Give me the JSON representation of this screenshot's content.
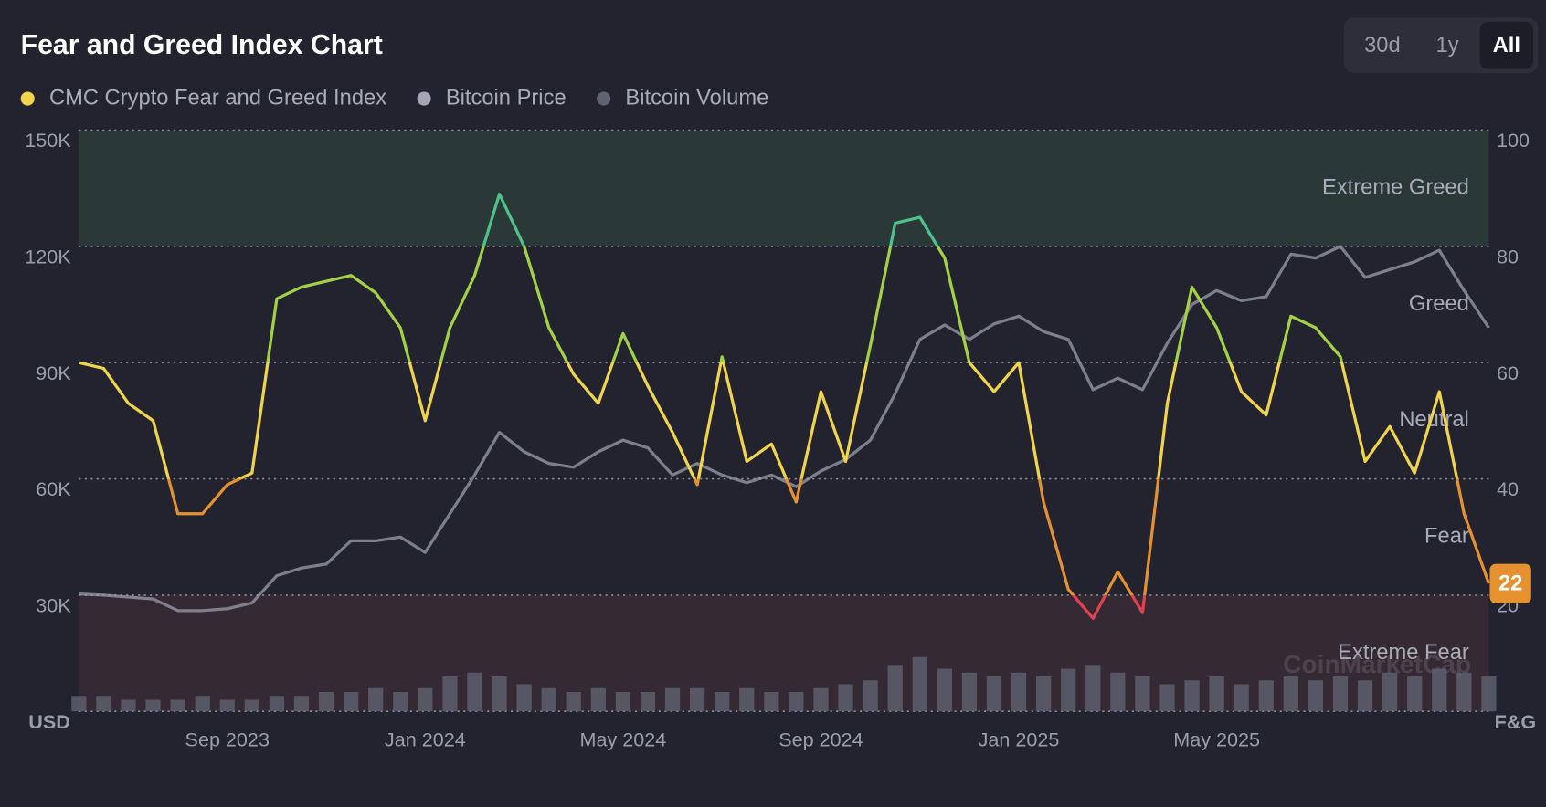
{
  "chart_data": {
    "type": "line",
    "title": "Fear and Greed Index Chart",
    "controls": {
      "ranges": [
        "30d",
        "1y",
        "All"
      ],
      "selected_index": 2
    },
    "y_unit": "USD",
    "y2_unit": "F&G",
    "watermark": "CoinMarketCap",
    "current_value": 22,
    "categories": [
      null,
      null,
      null,
      null,
      null,
      null,
      "Sep 2023",
      null,
      null,
      null,
      null,
      null,
      null,
      null,
      "Jan 2024",
      null,
      null,
      null,
      null,
      null,
      null,
      null,
      "May 2024",
      null,
      null,
      null,
      null,
      null,
      null,
      null,
      "Sep 2024",
      null,
      null,
      null,
      null,
      null,
      null,
      null,
      "Jan 2025",
      null,
      null,
      null,
      null,
      null,
      null,
      null,
      "May 2025",
      null,
      null,
      null,
      null,
      null,
      null,
      null,
      null,
      null,
      null,
      null
    ],
    "series": [
      {
        "name": "CMC Crypto Fear and Greed Index",
        "color": "#f0d44a",
        "axis": "y2",
        "values": [
          60,
          59,
          53,
          50,
          34,
          34,
          39,
          41,
          71,
          73,
          74,
          75,
          72,
          66,
          50,
          66,
          75,
          89,
          80,
          66,
          58,
          53,
          65,
          56,
          48,
          39,
          61,
          43,
          46,
          36,
          55,
          43,
          63,
          84,
          85,
          78,
          60,
          55,
          60,
          36,
          21,
          16,
          24,
          17,
          53,
          73,
          66,
          55,
          51,
          68,
          66,
          61,
          43,
          49,
          41,
          55,
          34,
          22
        ]
      },
      {
        "name": "Bitcoin Price",
        "color": "#a3a7b5",
        "values": [
          30300,
          30000,
          29500,
          29000,
          26000,
          26000,
          26500,
          28000,
          35000,
          37000,
          38000,
          44000,
          44000,
          45000,
          41000,
          51000,
          61000,
          72000,
          67000,
          64000,
          63000,
          67000,
          70000,
          68000,
          61000,
          64000,
          61000,
          59000,
          61000,
          58000,
          62000,
          65000,
          70000,
          82000,
          96000,
          99700,
          96000,
          100000,
          102000,
          98000,
          96000,
          83000,
          86000,
          83000,
          95000,
          105000,
          108600,
          106000,
          107000,
          118000,
          117000,
          120000,
          112000,
          114000,
          116000,
          119000,
          108600,
          99000
        ]
      },
      {
        "name": "Bitcoin Volume",
        "color": "#5f6270",
        "type": "bar",
        "values": [
          4000,
          4000,
          3000,
          3000,
          3000,
          4000,
          3000,
          3000,
          4000,
          4000,
          5000,
          5000,
          6000,
          5000,
          6000,
          9000,
          10000,
          9000,
          7000,
          6000,
          5000,
          6000,
          5000,
          5000,
          6000,
          6000,
          5000,
          6000,
          5000,
          5000,
          6000,
          7000,
          8000,
          12000,
          14000,
          11000,
          10000,
          9000,
          10000,
          9000,
          11000,
          12000,
          10000,
          9000,
          7000,
          8000,
          9000,
          7000,
          8000,
          9000,
          8000,
          9000,
          8000,
          10000,
          9000,
          11000,
          10000,
          9000
        ]
      }
    ],
    "zones": [
      {
        "name": "Extreme Greed",
        "from": 80,
        "to": 100,
        "color": "#4fc28b",
        "band_color": "#2a3838"
      },
      {
        "name": "Greed",
        "from": 60,
        "to": 80,
        "color": "#a4d143"
      },
      {
        "name": "Neutral",
        "from": 40,
        "to": 60,
        "color": "#f0d44a"
      },
      {
        "name": "Fear",
        "from": 20,
        "to": 40,
        "color": "#e5912f"
      },
      {
        "name": "Extreme Fear",
        "from": 0,
        "to": 20,
        "color": "#e0434f",
        "band_color": "#352933"
      }
    ],
    "ylim": [
      0,
      150000
    ],
    "yticks": [
      {
        "value": 30000,
        "label": "30K"
      },
      {
        "value": 60000,
        "label": "60K"
      },
      {
        "value": 90000,
        "label": "90K"
      },
      {
        "value": 120000,
        "label": "120K"
      },
      {
        "value": 150000,
        "label": "150K"
      }
    ],
    "y2lim": [
      0,
      100
    ],
    "y2ticks": [
      20,
      40,
      60,
      80,
      100
    ],
    "grid": true
  }
}
